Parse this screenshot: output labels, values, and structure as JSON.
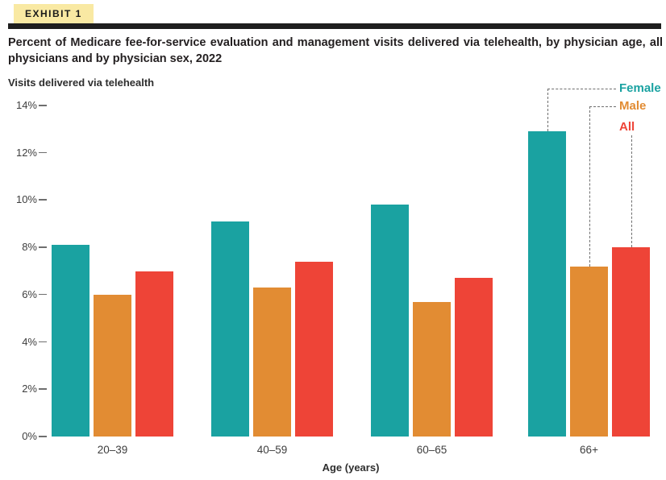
{
  "exhibit_label": "EXHIBIT 1",
  "title": "Percent of Medicare fee-for-service evaluation and management visits delivered via telehealth, by physician age, all physicians and by physician sex, 2022",
  "y_axis_title": "Visits delivered via telehealth",
  "x_axis_title": "Age (years)",
  "colors": {
    "female": "#1aa2a1",
    "male": "#e28c33",
    "all": "#ee4437",
    "exhibit_tag_bg": "#f9e9a3",
    "header_rule": "#1e1e1e",
    "connector": "#6e6e6e"
  },
  "chart_data": {
    "type": "bar",
    "title": "Percent of Medicare fee-for-service evaluation and management visits delivered via telehealth, by physician age, all physicians and by physician sex, 2022",
    "xlabel": "Age (years)",
    "ylabel": "Visits delivered via telehealth",
    "categories": [
      "20–39",
      "40–59",
      "60–65",
      "66+"
    ],
    "series": [
      {
        "name": "Female",
        "color": "#1aa2a1",
        "values": [
          8.1,
          9.1,
          9.8,
          12.9
        ]
      },
      {
        "name": "Male",
        "color": "#e28c33",
        "values": [
          6.0,
          6.3,
          5.7,
          7.2
        ]
      },
      {
        "name": "All",
        "color": "#ee4437",
        "values": [
          7.0,
          7.4,
          6.7,
          8.0
        ]
      }
    ],
    "ylim": [
      0,
      14
    ],
    "yticks": [
      {
        "v": 0,
        "label": "0%"
      },
      {
        "v": 2,
        "label": "2%"
      },
      {
        "v": 4,
        "label": "4%"
      },
      {
        "v": 6,
        "label": "6%"
      },
      {
        "v": 8,
        "label": "8%"
      },
      {
        "v": 10,
        "label": "10%"
      },
      {
        "v": 12,
        "label": "12%"
      },
      {
        "v": 14,
        "label": "14%"
      }
    ],
    "grid": false,
    "legend_position": "top-right",
    "legend_style": "dashed-callouts-to-last-group"
  }
}
